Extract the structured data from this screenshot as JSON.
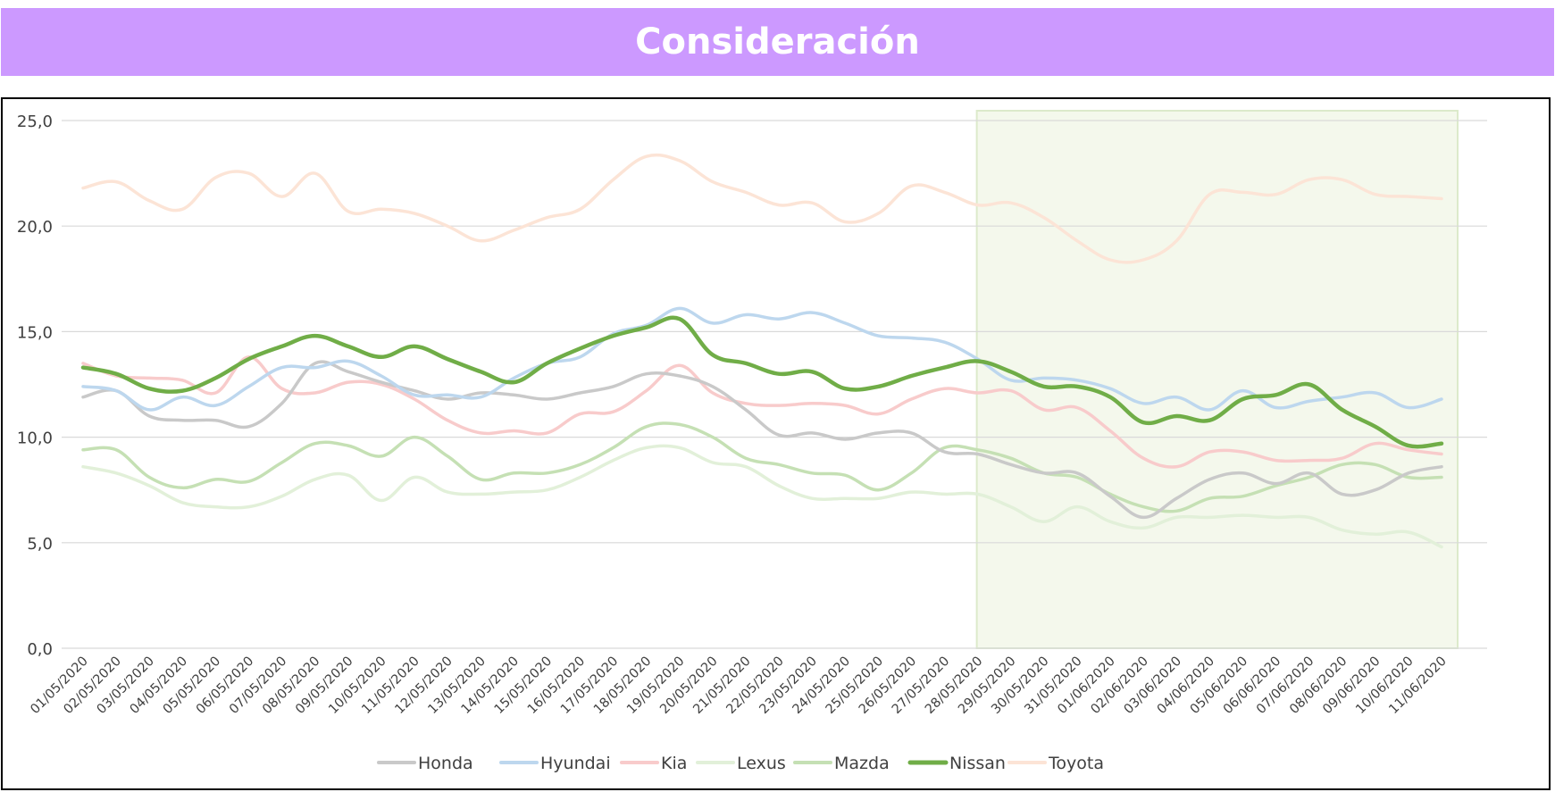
{
  "title": "Consideración",
  "colors": {
    "title_bar": "#CC99FF",
    "highlight_fill": "#F4F8EC",
    "highlight_border": "#DCEACB",
    "grid": "#D9D9D9"
  },
  "chart_data": {
    "type": "line",
    "title": "Consideración",
    "xlabel": "",
    "ylabel": "",
    "ylim": [
      0,
      25
    ],
    "y_ticks": [
      "0,0",
      "5,0",
      "10,0",
      "15,0",
      "20,0",
      "25,0"
    ],
    "y_tick_values": [
      0,
      5,
      10,
      15,
      20,
      25
    ],
    "grid": true,
    "legend_position": "bottom",
    "highlight_range": {
      "from": "28/05/2020",
      "to": "11/06/2020"
    },
    "categories": [
      "01/05/2020",
      "02/05/2020",
      "03/05/2020",
      "04/05/2020",
      "05/05/2020",
      "06/05/2020",
      "07/05/2020",
      "08/05/2020",
      "09/05/2020",
      "10/05/2020",
      "11/05/2020",
      "12/05/2020",
      "13/05/2020",
      "14/05/2020",
      "15/05/2020",
      "16/05/2020",
      "17/05/2020",
      "18/05/2020",
      "19/05/2020",
      "20/05/2020",
      "21/05/2020",
      "22/05/2020",
      "23/05/2020",
      "24/05/2020",
      "25/05/2020",
      "26/05/2020",
      "27/05/2020",
      "28/05/2020",
      "29/05/2020",
      "30/05/2020",
      "31/05/2020",
      "01/06/2020",
      "02/06/2020",
      "03/06/2020",
      "04/06/2020",
      "05/06/2020",
      "06/06/2020",
      "07/06/2020",
      "08/06/2020",
      "09/06/2020",
      "10/06/2020",
      "11/06/2020"
    ],
    "series": [
      {
        "name": "Honda",
        "color": "#C9C9C9",
        "width": 3.5,
        "values": [
          11.9,
          12.2,
          11.0,
          10.8,
          10.8,
          10.5,
          11.6,
          13.5,
          13.1,
          12.6,
          12.2,
          11.8,
          12.1,
          12.0,
          11.8,
          12.1,
          12.4,
          13.0,
          12.9,
          12.4,
          11.3,
          10.1,
          10.2,
          9.9,
          10.2,
          10.2,
          9.3,
          9.2,
          8.7,
          8.3,
          8.3,
          7.2,
          6.2,
          7.1,
          8.0,
          8.3,
          7.8,
          8.3,
          7.3,
          7.5,
          8.3,
          8.6
        ]
      },
      {
        "name": "Hyundai",
        "color": "#BDD7EE",
        "width": 3.5,
        "values": [
          12.4,
          12.2,
          11.3,
          11.9,
          11.5,
          12.4,
          13.3,
          13.3,
          13.6,
          12.9,
          12.0,
          12.0,
          11.9,
          12.8,
          13.5,
          13.8,
          14.9,
          15.3,
          16.1,
          15.4,
          15.8,
          15.6,
          15.9,
          15.4,
          14.8,
          14.7,
          14.5,
          13.7,
          12.7,
          12.8,
          12.7,
          12.3,
          11.6,
          11.9,
          11.3,
          12.2,
          11.4,
          11.7,
          11.9,
          12.1,
          11.4,
          11.8
        ]
      },
      {
        "name": "Kia",
        "color": "#F8CBCB",
        "width": 3.5,
        "values": [
          13.5,
          12.9,
          12.8,
          12.7,
          12.1,
          13.8,
          12.3,
          12.1,
          12.6,
          12.5,
          11.8,
          10.8,
          10.2,
          10.3,
          10.2,
          11.1,
          11.2,
          12.2,
          13.4,
          12.1,
          11.6,
          11.5,
          11.6,
          11.5,
          11.1,
          11.8,
          12.3,
          12.1,
          12.2,
          11.3,
          11.4,
          10.3,
          9.0,
          8.6,
          9.3,
          9.3,
          8.9,
          8.9,
          9.0,
          9.7,
          9.4,
          9.2
        ]
      },
      {
        "name": "Lexus",
        "color": "#E2F0D9",
        "width": 3.5,
        "values": [
          8.6,
          8.3,
          7.7,
          6.9,
          6.7,
          6.7,
          7.2,
          8.0,
          8.2,
          7.0,
          8.1,
          7.4,
          7.3,
          7.4,
          7.5,
          8.1,
          8.9,
          9.5,
          9.5,
          8.8,
          8.6,
          7.7,
          7.1,
          7.1,
          7.1,
          7.4,
          7.3,
          7.3,
          6.7,
          6.0,
          6.7,
          6.0,
          5.7,
          6.2,
          6.2,
          6.3,
          6.2,
          6.2,
          5.6,
          5.4,
          5.5,
          4.8
        ]
      },
      {
        "name": "Mazda",
        "color": "#C5E0B4",
        "width": 3.5,
        "values": [
          9.4,
          9.4,
          8.1,
          7.6,
          8.0,
          7.9,
          8.8,
          9.7,
          9.6,
          9.1,
          10.0,
          9.1,
          8.0,
          8.3,
          8.3,
          8.7,
          9.5,
          10.5,
          10.6,
          10.0,
          9.0,
          8.7,
          8.3,
          8.2,
          7.5,
          8.3,
          9.5,
          9.4,
          9.0,
          8.3,
          8.1,
          7.3,
          6.7,
          6.5,
          7.1,
          7.2,
          7.7,
          8.1,
          8.7,
          8.7,
          8.1,
          8.1
        ]
      },
      {
        "name": "Nissan",
        "color": "#70AD47",
        "width": 4.5,
        "values": [
          13.3,
          13.0,
          12.3,
          12.2,
          12.8,
          13.7,
          14.3,
          14.8,
          14.3,
          13.8,
          14.3,
          13.7,
          13.1,
          12.6,
          13.5,
          14.2,
          14.8,
          15.2,
          15.6,
          13.9,
          13.5,
          13.0,
          13.1,
          12.3,
          12.4,
          12.9,
          13.3,
          13.6,
          13.1,
          12.4,
          12.4,
          11.9,
          10.7,
          11.0,
          10.8,
          11.8,
          12.0,
          12.5,
          11.3,
          10.5,
          9.6,
          9.7
        ]
      },
      {
        "name": "Toyota",
        "color": "#FCE4D6",
        "width": 3.5,
        "values": [
          21.8,
          22.1,
          21.2,
          20.8,
          22.3,
          22.5,
          21.4,
          22.5,
          20.7,
          20.8,
          20.6,
          20.0,
          19.3,
          19.8,
          20.4,
          20.8,
          22.2,
          23.3,
          23.1,
          22.1,
          21.6,
          21.0,
          21.1,
          20.2,
          20.6,
          21.9,
          21.6,
          21.0,
          21.1,
          20.4,
          19.3,
          18.4,
          18.4,
          19.3,
          21.5,
          21.6,
          21.5,
          22.2,
          22.2,
          21.5,
          21.4,
          21.3
        ]
      }
    ]
  }
}
